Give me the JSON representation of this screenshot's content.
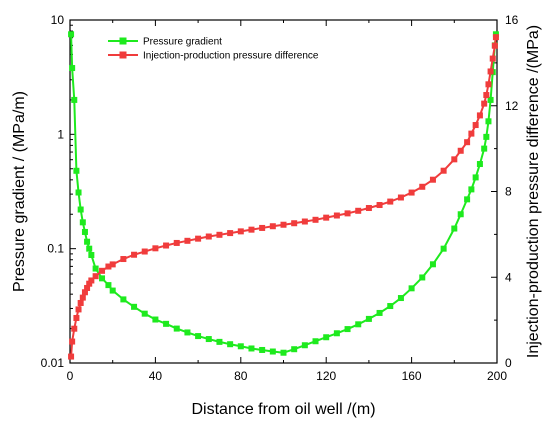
{
  "chart_data": {
    "type": "line",
    "title": "",
    "xlabel": "Distance from oil well /(m)",
    "ylabel_left": "Pressure gradient / (MPa/m)",
    "ylabel_right": "Injection-production pressure difference /(MPa)",
    "xlim": [
      0,
      200
    ],
    "ylim_left": [
      0.01,
      10
    ],
    "yscale_left": "log",
    "ylim_right": [
      0,
      16
    ],
    "xticks": [
      0,
      40,
      80,
      120,
      160,
      200
    ],
    "yticks_left": [
      0.01,
      0.1,
      1,
      10
    ],
    "yticks_right": [
      0,
      4,
      8,
      12,
      16
    ],
    "ytick_labels_left": [
      "0.01",
      "0.1",
      "1",
      "10"
    ],
    "grid": false,
    "legend_position": "top-left",
    "series": [
      {
        "name": "Pressure gradient",
        "color": "#1eea1e",
        "axis": "left",
        "x": [
          0.5,
          1,
          2,
          3,
          4,
          5,
          6,
          7,
          8,
          9,
          10,
          12,
          15,
          18,
          20,
          25,
          30,
          35,
          40,
          45,
          50,
          55,
          60,
          65,
          70,
          75,
          80,
          85,
          90,
          95,
          100,
          105,
          110,
          115,
          120,
          125,
          130,
          135,
          140,
          145,
          150,
          155,
          160,
          165,
          170,
          175,
          180,
          183,
          186,
          188,
          190,
          192,
          194,
          195,
          196,
          197,
          198,
          199,
          199.5
        ],
        "y": [
          7.5,
          3.8,
          2.0,
          0.48,
          0.31,
          0.22,
          0.17,
          0.14,
          0.115,
          0.1,
          0.088,
          0.067,
          0.055,
          0.048,
          0.043,
          0.036,
          0.031,
          0.027,
          0.024,
          0.022,
          0.02,
          0.0185,
          0.0172,
          0.0162,
          0.0153,
          0.0146,
          0.014,
          0.0134,
          0.013,
          0.0126,
          0.0123,
          0.0132,
          0.0143,
          0.0155,
          0.0168,
          0.0182,
          0.0198,
          0.0218,
          0.0243,
          0.0274,
          0.0315,
          0.037,
          0.045,
          0.056,
          0.073,
          0.1,
          0.15,
          0.2,
          0.27,
          0.33,
          0.42,
          0.55,
          0.75,
          0.95,
          1.3,
          2.0,
          3.5,
          6.0,
          7.5
        ]
      },
      {
        "name": "Injection-production pressure difference",
        "color": "#f03c3c",
        "axis": "right",
        "x": [
          0.5,
          1,
          2,
          3,
          4,
          5,
          6,
          7,
          8,
          9,
          10,
          12,
          15,
          18,
          20,
          25,
          30,
          35,
          40,
          45,
          50,
          55,
          60,
          65,
          70,
          75,
          80,
          85,
          90,
          95,
          100,
          105,
          110,
          115,
          120,
          125,
          130,
          135,
          140,
          145,
          150,
          155,
          160,
          165,
          170,
          175,
          180,
          183,
          186,
          188,
          190,
          192,
          194,
          195,
          196,
          197,
          198,
          199,
          199.5
        ],
        "y": [
          0.3,
          1.0,
          1.6,
          2.1,
          2.5,
          2.8,
          3.05,
          3.3,
          3.5,
          3.7,
          3.85,
          4.05,
          4.3,
          4.5,
          4.6,
          4.85,
          5.05,
          5.2,
          5.35,
          5.48,
          5.6,
          5.7,
          5.8,
          5.9,
          5.98,
          6.06,
          6.14,
          6.22,
          6.3,
          6.38,
          6.45,
          6.52,
          6.6,
          6.68,
          6.78,
          6.88,
          6.98,
          7.1,
          7.23,
          7.37,
          7.53,
          7.72,
          7.95,
          8.22,
          8.55,
          8.97,
          9.5,
          9.9,
          10.3,
          10.7,
          11.1,
          11.55,
          12.1,
          12.5,
          13.0,
          13.6,
          14.2,
          14.8,
          15.2
        ]
      }
    ]
  }
}
